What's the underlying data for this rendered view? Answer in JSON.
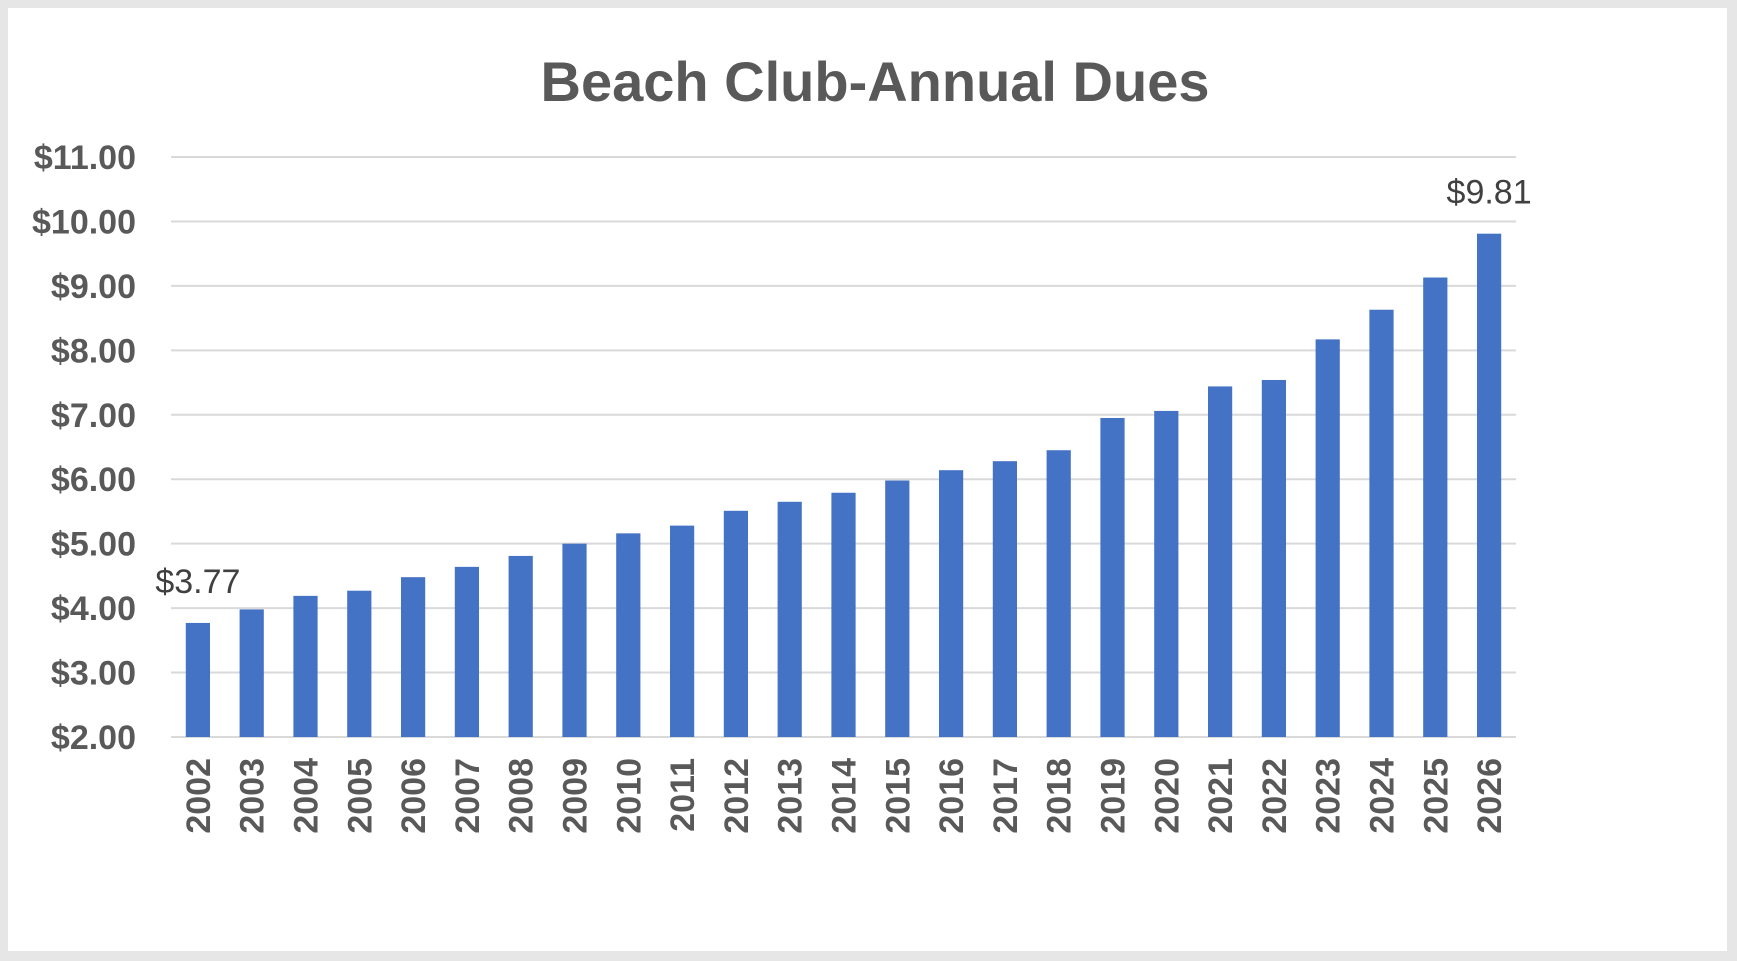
{
  "chart_data": {
    "type": "bar",
    "title": "Beach Club-Annual Dues",
    "xlabel": "",
    "ylabel": "",
    "categories": [
      "2002",
      "2003",
      "2004",
      "2005",
      "2006",
      "2007",
      "2008",
      "2009",
      "2010",
      "2011",
      "2012",
      "2013",
      "2014",
      "2015",
      "2016",
      "2017",
      "2018",
      "2019",
      "2020",
      "2021",
      "2022",
      "2023",
      "2024",
      "2025",
      "2026"
    ],
    "values": [
      3.77,
      3.98,
      4.19,
      4.27,
      4.48,
      4.64,
      4.81,
      5.0,
      5.16,
      5.28,
      5.51,
      5.65,
      5.79,
      5.98,
      6.14,
      6.28,
      6.45,
      6.95,
      7.06,
      7.44,
      7.54,
      8.17,
      8.63,
      9.13,
      9.81
    ],
    "ylim": [
      2,
      11
    ],
    "yticks": [
      2,
      3,
      4,
      5,
      6,
      7,
      8,
      9,
      10,
      11
    ],
    "ytick_labels": [
      "$2.00",
      "$3.00",
      "$4.00",
      "$5.00",
      "$6.00",
      "$7.00",
      "$8.00",
      "$9.00",
      "$10.00",
      "$11.00"
    ],
    "data_labels": [
      {
        "index": 0,
        "text": "$3.77"
      },
      {
        "index": 24,
        "text": "$9.81"
      }
    ],
    "grid": true,
    "legend": "none",
    "bar_color": "#4472c4"
  }
}
